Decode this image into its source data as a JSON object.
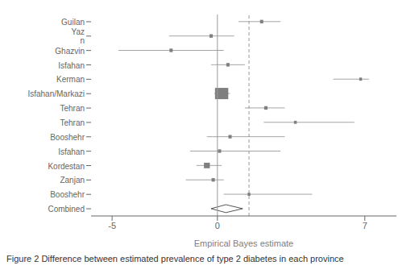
{
  "chart_data": {
    "type": "forest",
    "title": "Figure 2 Difference between estimated prevalence of type 2 diabetes in each province",
    "categories": [
      "Guilan",
      "Yaz\nn",
      "Ghazvin",
      "Isfahan",
      "Kerman",
      "Isfahan/Markazi",
      "Tehran",
      "Tehran",
      "Booshehr",
      "Isfahan",
      "Kordestan",
      "Zanjan",
      "Booshehr",
      "Combined"
    ],
    "values": [
      2.1,
      -0.3,
      -2.2,
      0.5,
      6.8,
      0.2,
      2.3,
      3.7,
      0.6,
      0.1,
      -0.5,
      -0.2,
      1.5,
      0.4
    ],
    "ci_low": [
      1.0,
      -2.3,
      -4.7,
      -0.3,
      5.5,
      -0.15,
      1.3,
      2.2,
      -0.5,
      -1.3,
      -1.0,
      -1.5,
      0.3,
      -0.3
    ],
    "ci_high": [
      3.0,
      0.8,
      0.3,
      1.3,
      7.2,
      0.6,
      3.2,
      6.5,
      3.2,
      3.0,
      0.2,
      0.3,
      4.5,
      1.2
    ],
    "weights": [
      3,
      3,
      3,
      3,
      2,
      22,
      3,
      2,
      3,
      3,
      8,
      3,
      2,
      null
    ],
    "colors": [
      "#7f7f7f",
      "#7f7f7f",
      "#7f7f7f",
      "#7f7f7f",
      "#7f7f7f",
      "#7f7f7f",
      "#7f7f7f",
      "#7f7f7f",
      "#7f7f7f",
      "#7f7f7f",
      "#7f7f7f",
      "#7f7f7f",
      "#7f7f7f",
      "#555555"
    ],
    "reference_lines": [
      {
        "x": 0,
        "line_style": "solid"
      },
      {
        "x": 1.5,
        "line_style": "dashed"
      }
    ],
    "xlim": [
      -6.0,
      8.5
    ],
    "xticks": [
      -5,
      0,
      7
    ],
    "xlabel": "Empirical Bayes estimate",
    "grid": false
  }
}
